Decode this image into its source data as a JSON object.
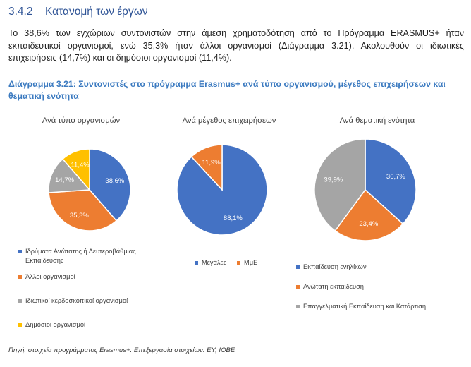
{
  "section": {
    "number": "3.4.2",
    "title": "Κατανομή των έργων"
  },
  "paragraph": "Το 38,6% των εγχώριων συντονιστών στην άμεση χρηματοδότηση από το Πρόγραμμα ERASMUS+ ήταν εκπαιδευτικοί οργανισμοί, ενώ 35,3% ήταν άλλοι οργανισμοί (Διάγραμμα 3.21). Ακολουθούν οι ιδιωτικές επιχειρήσεις (14,7%) και οι δημόσιοι οργανισμοί (11,4%).",
  "figure_title": "Διάγραμμα 3.21: Συντονιστές στο πρόγραμμα Erasmus+ ανά τύπο οργανισμού, μέγεθος επιχειρήσεων και θεματική ενότητα",
  "source": "Πηγή: στοιχεία προγράμματος Erasmus+. Επεξεργασία στοιχείων: ΕΥ, ΙΟΒΕ",
  "chart_data": [
    {
      "type": "pie",
      "title": "Ανά τύπο οργανισμών",
      "categories": [
        "Ιδρύματα Ανώτατης ή Δευτεροβάθμιας Εκπαίδευσης",
        "Άλλοι οργανισμοί",
        "Ιδιωτικοί κερδοσκοπικοί οργανισμοί",
        "Δημόσιοι οργανισμοί"
      ],
      "values": [
        38.6,
        35.3,
        14.7,
        11.4
      ],
      "labels": [
        "38,6%",
        "35,3%",
        "14,7%",
        "11,4%"
      ],
      "colors": [
        "#4472c4",
        "#ed7d31",
        "#a5a5a5",
        "#ffc000"
      ],
      "legend": "bottom"
    },
    {
      "type": "pie",
      "title": "Ανά μέγεθος επιχειρήσεων",
      "categories": [
        "Μεγάλες",
        "ΜμΕ"
      ],
      "values": [
        88.1,
        11.9
      ],
      "labels": [
        "88,1%",
        "11,9%"
      ],
      "colors": [
        "#4472c4",
        "#ed7d31"
      ],
      "legend": "bottom"
    },
    {
      "type": "pie",
      "title": "Ανά θεματική ενότητα",
      "categories": [
        "Εκπαίδευση ενηλίκων",
        "Ανώτατη εκπαίδευση",
        "Επαγγελματική Εκπαίδευση και Κατάρτιση"
      ],
      "values": [
        36.7,
        23.4,
        39.9
      ],
      "labels": [
        "36,7%",
        "23,4%",
        "39,9%"
      ],
      "colors": [
        "#4472c4",
        "#ed7d31",
        "#a5a5a5"
      ],
      "legend": "bottom"
    }
  ]
}
